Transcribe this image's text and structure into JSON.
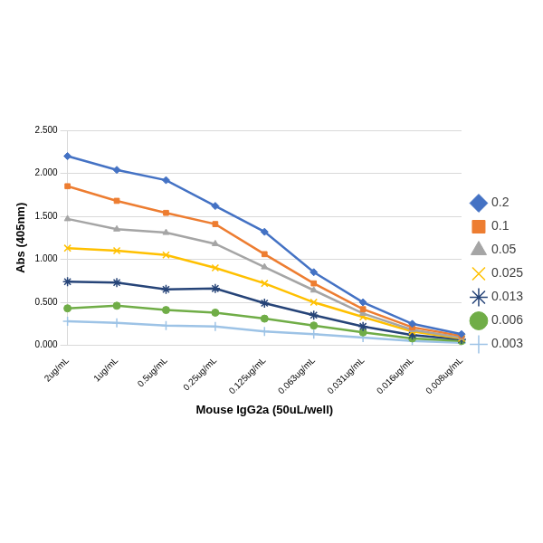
{
  "chart_data": {
    "type": "line",
    "x_label": "Mouse IgG2a (50uL/well)",
    "y_label": "Abs (405nm)",
    "categories": [
      "2ug/mL",
      "1ug/mL",
      "0.5ug/mL",
      "0.25ug/mL",
      "0.125ug/mL",
      "0.063ug/mL",
      "0.031ug/mL",
      "0.016ug/mL",
      "0.008ug/mL"
    ],
    "series": [
      {
        "name": "0.2",
        "color": "#4472c4",
        "marker": "diamond",
        "values": [
          2.2,
          2.04,
          1.92,
          1.62,
          1.32,
          0.85,
          0.5,
          0.25,
          0.13
        ]
      },
      {
        "name": "0.1",
        "color": "#ed7d31",
        "marker": "square",
        "values": [
          1.85,
          1.68,
          1.54,
          1.41,
          1.06,
          0.72,
          0.42,
          0.21,
          0.11
        ]
      },
      {
        "name": "0.05",
        "color": "#a5a5a5",
        "marker": "triangle",
        "values": [
          1.47,
          1.35,
          1.31,
          1.18,
          0.91,
          0.64,
          0.37,
          0.18,
          0.09
        ]
      },
      {
        "name": "0.025",
        "color": "#ffc000",
        "marker": "x",
        "values": [
          1.13,
          1.1,
          1.05,
          0.9,
          0.72,
          0.5,
          0.33,
          0.16,
          0.08
        ]
      },
      {
        "name": "0.013",
        "color": "#264478",
        "marker": "star",
        "values": [
          0.74,
          0.73,
          0.65,
          0.66,
          0.49,
          0.35,
          0.22,
          0.12,
          0.07
        ]
      },
      {
        "name": "0.006",
        "color": "#70ad47",
        "marker": "circle",
        "values": [
          0.43,
          0.46,
          0.41,
          0.38,
          0.31,
          0.23,
          0.15,
          0.08,
          0.05
        ]
      },
      {
        "name": "0.003",
        "color": "#9dc3e6",
        "marker": "plus",
        "values": [
          0.28,
          0.26,
          0.23,
          0.22,
          0.16,
          0.13,
          0.09,
          0.05,
          0.03
        ]
      }
    ],
    "ylim": [
      0,
      2.5
    ],
    "yticks": [
      {
        "value": 0,
        "label": "0.000"
      },
      {
        "value": 0.5,
        "label": "0.500"
      },
      {
        "value": 1,
        "label": "1.000"
      },
      {
        "value": 1.5,
        "label": "1.500"
      },
      {
        "value": 2,
        "label": "2.000"
      },
      {
        "value": 2.5,
        "label": "2.500"
      }
    ],
    "grid": true,
    "legend": "right"
  }
}
